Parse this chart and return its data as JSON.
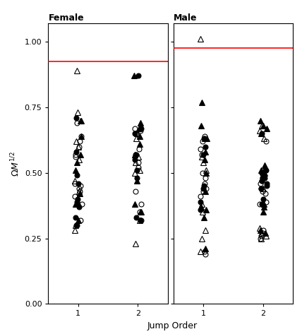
{
  "title_female": "Female",
  "title_male": "Male",
  "xlabel": "Jump Order",
  "ylabel": "ΩM¹⁄²",
  "ylim": [
    0.0,
    1.07
  ],
  "yticks": [
    0.0,
    0.25,
    0.5,
    0.75,
    1.0
  ],
  "xticks": [
    1,
    2
  ],
  "red_line_female": 0.925,
  "red_line_male": 0.975,
  "female_jump1": {
    "open_circle": [
      0.69,
      0.64,
      0.62,
      0.6,
      0.57,
      0.56,
      0.46,
      0.45,
      0.44,
      0.43,
      0.41,
      0.38,
      0.32,
      0.3
    ],
    "filled_circle": [
      0.71,
      0.58,
      0.49,
      0.46,
      0.4,
      0.39,
      0.37,
      0.33,
      0.3
    ],
    "open_tri": [
      0.89,
      0.73,
      0.7,
      0.62,
      0.6,
      0.55,
      0.47,
      0.43,
      0.3,
      0.28
    ],
    "filled_tri": [
      0.7,
      0.64,
      0.57,
      0.54,
      0.51,
      0.42,
      0.39,
      0.38,
      0.32
    ]
  },
  "female_jump2": {
    "open_circle": [
      0.67,
      0.66,
      0.65,
      0.59,
      0.57,
      0.54,
      0.52,
      0.43,
      0.38,
      0.35,
      0.32,
      0.32
    ],
    "filled_circle": [
      0.87,
      0.67,
      0.65,
      0.57,
      0.55,
      0.51,
      0.48,
      0.33,
      0.32
    ],
    "open_tri": [
      0.65,
      0.63,
      0.56,
      0.54,
      0.51,
      0.5,
      0.35,
      0.32,
      0.23
    ],
    "filled_tri": [
      0.87,
      0.69,
      0.67,
      0.64,
      0.61,
      0.57,
      0.47,
      0.38,
      0.35
    ]
  },
  "male_jump1": {
    "open_circle": [
      0.64,
      0.62,
      0.59,
      0.57,
      0.5,
      0.48,
      0.46,
      0.44,
      0.43,
      0.41,
      0.2,
      0.19
    ],
    "filled_circle": [
      0.63,
      0.6,
      0.57,
      0.45,
      0.44,
      0.39,
      0.36
    ],
    "open_tri": [
      1.01,
      0.63,
      0.56,
      0.54,
      0.51,
      0.38,
      0.35,
      0.28,
      0.25,
      0.2
    ],
    "filled_tri": [
      0.77,
      0.68,
      0.63,
      0.58,
      0.55,
      0.5,
      0.43,
      0.37,
      0.36,
      0.33,
      0.21
    ]
  },
  "male_jump2": {
    "open_circle": [
      0.62,
      0.47,
      0.46,
      0.44,
      0.43,
      0.42,
      0.39,
      0.38,
      0.28,
      0.27,
      0.26,
      0.25
    ],
    "filled_circle": [
      0.65,
      0.51,
      0.5,
      0.49,
      0.48,
      0.47,
      0.46,
      0.45,
      0.44,
      0.4,
      0.38
    ],
    "open_tri": [
      0.68,
      0.66,
      0.63,
      0.44,
      0.29,
      0.27,
      0.26,
      0.25
    ],
    "filled_tri": [
      0.7,
      0.68,
      0.67,
      0.65,
      0.53,
      0.52,
      0.51,
      0.5,
      0.49,
      0.38,
      0.37,
      0.35,
      0.28,
      0.27
    ]
  },
  "jitter_seed": 42,
  "marker_size": 5,
  "red_color": "#FF0000",
  "text_color": "#000000",
  "bg_color": "#FFFFFF"
}
